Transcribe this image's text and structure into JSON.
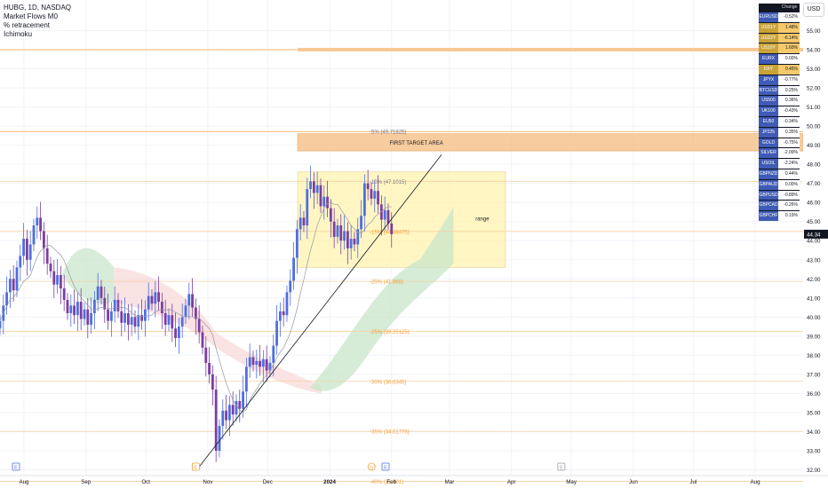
{
  "legend": {
    "symbol_line": "HUBG, 1D, NASDAQ",
    "indicators": [
      "Market Flows M0",
      "% retracement",
      "Ichimoku"
    ]
  },
  "currency_button": "USD",
  "last_price": "44.34",
  "watchlist": {
    "headers": [
      "",
      "Change %"
    ],
    "rows": [
      {
        "symbol": "EURUSD",
        "change": "-0.52%",
        "highlight": false
      },
      {
        "symbol": "USD1Y",
        "change": "1.48%",
        "highlight": true
      },
      {
        "symbol": "USD2Y",
        "change": "-6.14%",
        "highlight": true
      },
      {
        "symbol": "US10Y",
        "change": "1.60%",
        "highlight": true
      },
      {
        "symbol": "EURX",
        "change": "0.00%",
        "highlight": false
      },
      {
        "symbol": "DXY",
        "change": "0.45%",
        "highlight": true
      },
      {
        "symbol": "JPYX",
        "change": "-0.77%",
        "highlight": false
      },
      {
        "symbol": "BTCUSD",
        "change": "0.25%",
        "highlight": false
      },
      {
        "symbol": "US500",
        "change": "0.36%",
        "highlight": false
      },
      {
        "symbol": "UK100",
        "change": "-0.43%",
        "highlight": false
      },
      {
        "symbol": "EU50",
        "change": "-0.34%",
        "highlight": false
      },
      {
        "symbol": "JP225",
        "change": "0.35%",
        "highlight": false
      },
      {
        "symbol": "GOLD",
        "change": "-0.75%",
        "highlight": false
      },
      {
        "symbol": "SILVER",
        "change": "-2.09%",
        "highlight": false
      },
      {
        "symbol": "USOIL",
        "change": "-2.24%",
        "highlight": false
      },
      {
        "symbol": "GBPNZD",
        "change": "0.44%",
        "highlight": false
      },
      {
        "symbol": "GBPAUD",
        "change": "0.00%",
        "highlight": false
      },
      {
        "symbol": "GBPUSD",
        "change": "-0.89%",
        "highlight": false
      },
      {
        "symbol": "GBPCAD",
        "change": "-0.26%",
        "highlight": false
      },
      {
        "symbol": "GBPCHF",
        "change": "0.19%",
        "highlight": false
      }
    ]
  },
  "chart_data": {
    "type": "candlestick",
    "symbol": "HUBG",
    "interval": "1D",
    "exchange": "NASDAQ",
    "ylim": [
      31.7,
      56.6
    ],
    "y_ticks": [
      "32.00",
      "33.00",
      "34.00",
      "35.00",
      "36.00",
      "37.00",
      "38.00",
      "39.00",
      "40.00",
      "41.00",
      "42.00",
      "43.00",
      "44.00",
      "45.00",
      "46.00",
      "47.00",
      "48.00",
      "49.00",
      "50.00",
      "51.00",
      "52.00",
      "53.00",
      "54.00",
      "55.00"
    ],
    "x_ticks": [
      "Aug",
      "Sep",
      "Oct",
      "Nov",
      "Dec",
      "2024",
      "Feb",
      "Mar",
      "Apr",
      "May",
      "Jun",
      "Jul",
      "Aug"
    ],
    "x_dates": [
      "2023-08-01",
      "2023-09-01",
      "2023-10-01",
      "2023-11-01",
      "2023-12-01",
      "2024-01-01",
      "2024-02-01",
      "2024-03-01",
      "2024-04-01",
      "2024-05-01",
      "2024-06-01",
      "2024-07-01",
      "2024-08-01"
    ],
    "candles_note": "approximate daily closes",
    "closes": [
      39.8,
      40.6,
      41.3,
      42.0,
      41.4,
      42.6,
      43.2,
      44.1,
      43.0,
      43.8,
      44.8,
      45.2,
      44.5,
      43.6,
      42.8,
      42.4,
      41.7,
      42.2,
      41.5,
      40.9,
      40.2,
      40.6,
      40.1,
      40.8,
      39.9,
      40.4,
      39.6,
      40.2,
      40.9,
      41.6,
      41.0,
      40.4,
      39.8,
      40.3,
      40.9,
      40.3,
      39.7,
      40.2,
      39.6,
      40.0,
      39.5,
      40.1,
      39.8,
      40.4,
      41.1,
      40.7,
      41.3,
      40.8,
      40.2,
      39.6,
      40.1,
      39.4,
      38.9,
      39.5,
      40.0,
      40.6,
      41.2,
      40.5,
      39.9,
      39.2,
      38.4,
      37.6,
      37.0,
      36.2,
      33.0,
      34.3,
      35.1,
      34.6,
      35.4,
      34.9,
      35.6,
      35.2,
      36.1,
      37.4,
      37.9,
      37.5,
      37.7,
      37.4,
      37.8,
      37.2,
      37.6,
      38.5,
      39.8,
      40.3,
      40.1,
      41.3,
      41.9,
      43.1,
      44.6,
      45.2,
      44.8,
      46.7,
      47.1,
      46.5,
      46.9,
      45.8,
      46.3,
      45.7,
      45.0,
      44.2,
      44.8,
      44.0,
      44.5,
      43.6,
      44.1,
      43.8,
      44.6,
      45.3,
      47.0,
      46.7,
      46.2,
      46.6,
      45.9,
      45.1,
      45.6,
      44.9,
      44.34
    ],
    "retracement_levels": [
      {
        "label": "-5% (49.71825)",
        "value": 49.71825
      },
      {
        "label": "-10% (47.1015)",
        "value": 47.1015
      },
      {
        "label": "-15% (44.48475)",
        "value": 44.48475
      },
      {
        "label": "-20% (41.868)",
        "value": 41.868
      },
      {
        "label": "-25% (39.25125)",
        "value": 39.25125
      },
      {
        "label": "-30% (36.6345)",
        "value": 36.6345
      },
      {
        "label": "-35% (34.01775)",
        "value": 34.01775
      },
      {
        "label": "-40% (31.401)",
        "value": 31.401
      }
    ],
    "zones": [
      {
        "label": "FIRST TARGET AREA",
        "from": 48.7,
        "to": 49.6,
        "color": "#f6c48f"
      },
      {
        "label": "range",
        "from": 42.6,
        "to": 47.6,
        "color": "#fff3b0"
      }
    ],
    "horizontal_lines": [
      54.0,
      49.7
    ],
    "trendline": {
      "from": {
        "date": "2023-10-28",
        "price": 32.2
      },
      "to": {
        "date": "2024-02-26",
        "price": 48.5
      }
    },
    "markers": [
      "E",
      "E",
      "S",
      "E",
      "E"
    ]
  }
}
